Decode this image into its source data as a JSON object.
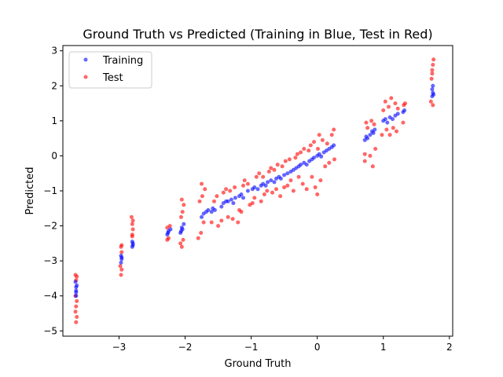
{
  "chart_data": {
    "type": "scatter",
    "title": "Ground Truth vs Predicted (Training in Blue, Test in Red)",
    "xlabel": "Ground Truth",
    "ylabel": "Predicted",
    "xlim": [
      -3.85,
      2.05
    ],
    "ylim": [
      -5.15,
      3.15
    ],
    "xticks": [
      -3,
      -2,
      -1,
      0,
      1,
      2
    ],
    "yticks": [
      -5,
      -4,
      -3,
      -2,
      -1,
      0,
      1,
      2,
      3
    ],
    "xtick_labels": [
      "−3",
      "−2",
      "−1",
      "0",
      "1",
      "2"
    ],
    "ytick_labels": [
      "−5",
      "−4",
      "−3",
      "−2",
      "−1",
      "0",
      "1",
      "2",
      "3"
    ],
    "grid": false,
    "legend": {
      "position": "top-left",
      "entries": [
        "Training",
        "Test"
      ]
    },
    "series": [
      {
        "name": "Training",
        "color": "#0000ff",
        "points": [
          [
            -3.65,
            -4.0
          ],
          [
            -3.65,
            -3.85
          ],
          [
            -3.65,
            -3.75
          ],
          [
            -3.64,
            -3.7
          ],
          [
            -3.66,
            -3.6
          ],
          [
            -3.65,
            -3.9
          ],
          [
            -2.97,
            -3.05
          ],
          [
            -2.96,
            -2.95
          ],
          [
            -2.97,
            -2.85
          ],
          [
            -2.96,
            -2.9
          ],
          [
            -2.8,
            -2.6
          ],
          [
            -2.79,
            -2.5
          ],
          [
            -2.8,
            -2.45
          ],
          [
            -2.79,
            -2.55
          ],
          [
            -2.27,
            -2.25
          ],
          [
            -2.25,
            -2.15
          ],
          [
            -2.22,
            -2.1
          ],
          [
            -2.26,
            -2.2
          ],
          [
            -2.07,
            -2.2
          ],
          [
            -2.05,
            -2.05
          ],
          [
            -2.02,
            -1.95
          ],
          [
            -2.04,
            -2.1
          ],
          [
            -2.06,
            -2.15
          ],
          [
            -1.75,
            -1.75
          ],
          [
            -1.72,
            -1.65
          ],
          [
            -1.68,
            -1.6
          ],
          [
            -1.65,
            -1.55
          ],
          [
            -1.6,
            -1.6
          ],
          [
            -1.58,
            -1.5
          ],
          [
            -1.55,
            -1.55
          ],
          [
            -1.45,
            -1.45
          ],
          [
            -1.42,
            -1.35
          ],
          [
            -1.38,
            -1.3
          ],
          [
            -1.35,
            -1.3
          ],
          [
            -1.3,
            -1.25
          ],
          [
            -1.27,
            -1.35
          ],
          [
            -1.24,
            -1.2
          ],
          [
            -1.18,
            -1.15
          ],
          [
            -1.15,
            -1.1
          ],
          [
            -1.12,
            -1.2
          ],
          [
            -1.05,
            -1.0
          ],
          [
            -0.98,
            -0.95
          ],
          [
            -0.95,
            -0.9
          ],
          [
            -0.9,
            -0.95
          ],
          [
            -0.85,
            -0.85
          ],
          [
            -0.82,
            -0.8
          ],
          [
            -0.78,
            -0.85
          ],
          [
            -0.75,
            -0.75
          ],
          [
            -0.7,
            -0.7
          ],
          [
            -0.65,
            -0.75
          ],
          [
            -0.62,
            -0.65
          ],
          [
            -0.58,
            -0.6
          ],
          [
            -0.55,
            -0.65
          ],
          [
            -0.5,
            -0.55
          ],
          [
            -0.45,
            -0.5
          ],
          [
            -0.4,
            -0.45
          ],
          [
            -0.36,
            -0.4
          ],
          [
            -0.32,
            -0.35
          ],
          [
            -0.28,
            -0.3
          ],
          [
            -0.25,
            -0.25
          ],
          [
            -0.2,
            -0.2
          ],
          [
            -0.16,
            -0.25
          ],
          [
            -0.12,
            -0.15
          ],
          [
            -0.08,
            -0.1
          ],
          [
            -0.05,
            -0.05
          ],
          [
            0.0,
            0.0
          ],
          [
            0.03,
            0.05
          ],
          [
            0.06,
            -0.02
          ],
          [
            0.1,
            0.1
          ],
          [
            0.14,
            0.15
          ],
          [
            0.18,
            0.2
          ],
          [
            0.22,
            0.25
          ],
          [
            0.25,
            0.3
          ],
          [
            0.72,
            0.45
          ],
          [
            0.74,
            0.55
          ],
          [
            0.76,
            0.5
          ],
          [
            0.8,
            0.6
          ],
          [
            0.83,
            0.7
          ],
          [
            0.85,
            0.65
          ],
          [
            0.87,
            0.75
          ],
          [
            1.0,
            1.0
          ],
          [
            1.03,
            1.05
          ],
          [
            1.06,
            0.95
          ],
          [
            1.1,
            1.1
          ],
          [
            1.14,
            1.05
          ],
          [
            1.18,
            1.15
          ],
          [
            1.22,
            1.2
          ],
          [
            1.3,
            1.25
          ],
          [
            1.32,
            1.3
          ],
          [
            1.74,
            1.7
          ],
          [
            1.75,
            1.8
          ],
          [
            1.74,
            1.9
          ],
          [
            1.76,
            1.75
          ],
          [
            1.75,
            2.0
          ]
        ]
      },
      {
        "name": "Test",
        "color": "#ff0000",
        "points": [
          [
            -3.65,
            -4.75
          ],
          [
            -3.64,
            -4.6
          ],
          [
            -3.66,
            -4.45
          ],
          [
            -3.65,
            -4.3
          ],
          [
            -3.64,
            -4.15
          ],
          [
            -3.66,
            -4.0
          ],
          [
            -3.65,
            -3.55
          ],
          [
            -3.64,
            -3.45
          ],
          [
            -3.66,
            -3.4
          ],
          [
            -2.97,
            -3.4
          ],
          [
            -2.96,
            -3.25
          ],
          [
            -2.98,
            -3.15
          ],
          [
            -2.96,
            -2.75
          ],
          [
            -2.97,
            -2.6
          ],
          [
            -2.96,
            -2.55
          ],
          [
            -2.8,
            -2.25
          ],
          [
            -2.79,
            -2.1
          ],
          [
            -2.8,
            -1.95
          ],
          [
            -2.79,
            -1.85
          ],
          [
            -2.81,
            -1.75
          ],
          [
            -2.8,
            -2.3
          ],
          [
            -2.27,
            -2.4
          ],
          [
            -2.25,
            -2.35
          ],
          [
            -2.23,
            -2.0
          ],
          [
            -2.27,
            -2.05
          ],
          [
            -2.05,
            -2.6
          ],
          [
            -2.07,
            -2.5
          ],
          [
            -2.03,
            -2.4
          ],
          [
            -2.06,
            -1.75
          ],
          [
            -2.04,
            -1.6
          ],
          [
            -2.02,
            -1.4
          ],
          [
            -2.05,
            -1.25
          ],
          [
            -1.8,
            -2.35
          ],
          [
            -1.76,
            -2.2
          ],
          [
            -1.72,
            -1.9
          ],
          [
            -1.78,
            -1.3
          ],
          [
            -1.74,
            -1.15
          ],
          [
            -1.7,
            -0.95
          ],
          [
            -1.75,
            -0.8
          ],
          [
            -1.6,
            -1.9
          ],
          [
            -1.56,
            -1.3
          ],
          [
            -1.52,
            -1.15
          ],
          [
            -1.5,
            -2.0
          ],
          [
            -1.45,
            -1.85
          ],
          [
            -1.42,
            -1.05
          ],
          [
            -1.38,
            -0.95
          ],
          [
            -1.35,
            -1.75
          ],
          [
            -1.32,
            -1.0
          ],
          [
            -1.28,
            -1.8
          ],
          [
            -1.25,
            -0.9
          ],
          [
            -1.2,
            -1.9
          ],
          [
            -1.18,
            -1.55
          ],
          [
            -1.15,
            -1.6
          ],
          [
            -1.12,
            -0.85
          ],
          [
            -1.1,
            -0.7
          ],
          [
            -1.05,
            -0.8
          ],
          [
            -1.02,
            -1.4
          ],
          [
            -0.98,
            -1.35
          ],
          [
            -0.95,
            -1.2
          ],
          [
            -0.92,
            -0.6
          ],
          [
            -0.88,
            -0.5
          ],
          [
            -0.85,
            -1.3
          ],
          [
            -0.82,
            -0.6
          ],
          [
            -0.8,
            -1.1
          ],
          [
            -0.76,
            -1.0
          ],
          [
            -0.73,
            -0.45
          ],
          [
            -0.7,
            -0.35
          ],
          [
            -0.68,
            -1.05
          ],
          [
            -0.65,
            -0.4
          ],
          [
            -0.62,
            -0.95
          ],
          [
            -0.6,
            -0.25
          ],
          [
            -0.56,
            -1.15
          ],
          [
            -0.53,
            -0.3
          ],
          [
            -0.5,
            -0.9
          ],
          [
            -0.48,
            -0.15
          ],
          [
            -0.45,
            -0.85
          ],
          [
            -0.42,
            -0.1
          ],
          [
            -0.4,
            -0.7
          ],
          [
            -0.36,
            -1.0
          ],
          [
            -0.33,
            -0.05
          ],
          [
            -0.3,
            0.05
          ],
          [
            -0.28,
            -0.6
          ],
          [
            -0.25,
            0.1
          ],
          [
            -0.22,
            -0.8
          ],
          [
            -0.2,
            0.2
          ],
          [
            -0.16,
            -0.95
          ],
          [
            -0.13,
            0.15
          ],
          [
            -0.1,
            0.3
          ],
          [
            -0.08,
            -0.6
          ],
          [
            -0.05,
            0.4
          ],
          [
            -0.03,
            -0.9
          ],
          [
            0.0,
            -1.1
          ],
          [
            0.01,
            0.2
          ],
          [
            0.03,
            0.6
          ],
          [
            0.05,
            -0.7
          ],
          [
            0.08,
            0.45
          ],
          [
            0.12,
            -0.3
          ],
          [
            0.15,
            0.35
          ],
          [
            0.18,
            -0.2
          ],
          [
            0.22,
            0.6
          ],
          [
            0.25,
            0.75
          ],
          [
            0.26,
            -0.1
          ],
          [
            0.72,
            0.05
          ],
          [
            0.74,
            0.95
          ],
          [
            0.76,
            0.8
          ],
          [
            0.72,
            -0.15
          ],
          [
            0.8,
            0.0
          ],
          [
            0.82,
            1.0
          ],
          [
            0.84,
            -0.3
          ],
          [
            0.86,
            0.9
          ],
          [
            0.88,
            0.2
          ],
          [
            0.98,
            0.6
          ],
          [
            1.0,
            1.3
          ],
          [
            1.03,
            1.55
          ],
          [
            1.05,
            0.75
          ],
          [
            1.08,
            1.4
          ],
          [
            1.1,
            0.6
          ],
          [
            1.12,
            1.65
          ],
          [
            1.15,
            0.8
          ],
          [
            1.18,
            1.5
          ],
          [
            1.2,
            0.7
          ],
          [
            1.22,
            1.35
          ],
          [
            1.3,
            0.95
          ],
          [
            1.31,
            1.45
          ],
          [
            1.33,
            1.5
          ],
          [
            1.72,
            1.55
          ],
          [
            1.73,
            2.2
          ],
          [
            1.74,
            2.45
          ],
          [
            1.75,
            2.6
          ],
          [
            1.76,
            2.75
          ],
          [
            1.74,
            2.35
          ],
          [
            1.75,
            1.45
          ]
        ]
      }
    ]
  }
}
